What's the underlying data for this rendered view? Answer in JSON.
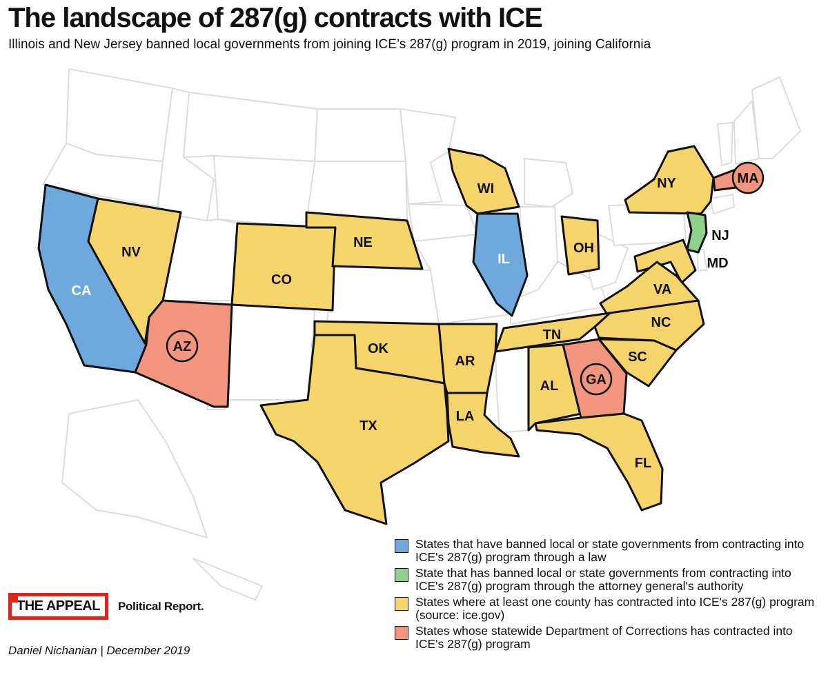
{
  "title": "The landscape of 287(g) contracts with ICE",
  "subtitle": "Illinois and New Jersey banned local governments from joining ICE’s 287(g) program in 2019, joining California",
  "colors": {
    "banned_law": "#6fa8dc",
    "banned_ag": "#8fd18a",
    "county_contract": "#f5d56b",
    "doc_contract": "#f2957f",
    "none": "#ffffff",
    "outline": "#111111",
    "background_states": "#dcdcdc"
  },
  "legend": [
    {
      "category": "banned_law",
      "text": "States that have banned local or state governments from contracting into ICE's 287(g) program through a law"
    },
    {
      "category": "banned_ag",
      "text": "State that has banned local or state governments from contracting into ICE's 287(g) program through the attorney general's authority"
    },
    {
      "category": "county_contract",
      "text": "States where at least one county has contracted into ICE's 287(g) program (source: ice.gov)"
    },
    {
      "category": "doc_contract",
      "text": "States whose statewide Department of Corrections has contracted into ICE's 287(g) program"
    }
  ],
  "states": [
    {
      "abbr": "CA",
      "category": "banned_law"
    },
    {
      "abbr": "IL",
      "category": "banned_law"
    },
    {
      "abbr": "NJ",
      "category": "banned_ag"
    },
    {
      "abbr": "NV",
      "category": "county_contract"
    },
    {
      "abbr": "CO",
      "category": "county_contract"
    },
    {
      "abbr": "NE",
      "category": "county_contract"
    },
    {
      "abbr": "WI",
      "category": "county_contract"
    },
    {
      "abbr": "NY",
      "category": "county_contract"
    },
    {
      "abbr": "OH",
      "category": "county_contract"
    },
    {
      "abbr": "MD",
      "category": "county_contract"
    },
    {
      "abbr": "VA",
      "category": "county_contract"
    },
    {
      "abbr": "NC",
      "category": "county_contract"
    },
    {
      "abbr": "TN",
      "category": "county_contract"
    },
    {
      "abbr": "OK",
      "category": "county_contract"
    },
    {
      "abbr": "AR",
      "category": "county_contract"
    },
    {
      "abbr": "TX",
      "category": "county_contract"
    },
    {
      "abbr": "LA",
      "category": "county_contract"
    },
    {
      "abbr": "AL",
      "category": "county_contract"
    },
    {
      "abbr": "SC",
      "category": "county_contract"
    },
    {
      "abbr": "FL",
      "category": "county_contract"
    },
    {
      "abbr": "AZ",
      "category": "doc_contract"
    },
    {
      "abbr": "GA",
      "category": "doc_contract"
    },
    {
      "abbr": "MA",
      "category": "doc_contract"
    }
  ],
  "logo": {
    "name": "THE APPEAL",
    "section": "Political Report."
  },
  "byline": "Daniel Nichanian | December 2019"
}
